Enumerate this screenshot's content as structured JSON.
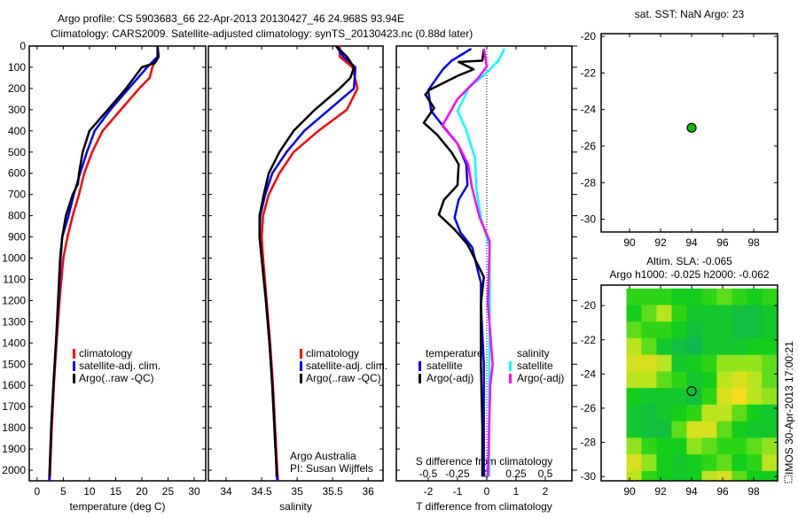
{
  "header": {
    "title_line1": "Argo profile: CS 5903683_66 22-Apr-2013 20130427_46 24.968S 93.94E",
    "title_line2": "Climatology: CARS2009. Satellite-adjusted climatology: synTS_20130423.nc (0.88d later)"
  },
  "colors": {
    "climatology": "#ff0000",
    "satellite": "#0000ff",
    "argo": "#000000",
    "sal_satellite": "#00ffff",
    "sal_argo": "#ff00ff"
  },
  "credits": {
    "line1": "Argo Australia",
    "line2": "PI: Susan Wijffels"
  },
  "imos_stamp": "IMOS 30-Apr-2013 17:00:21",
  "chart_data": [
    {
      "type": "line",
      "id": "temperature",
      "xlabel": "temperature (deg C)",
      "xticks": [
        "0",
        "5",
        "10",
        "15",
        "20",
        "25",
        "30"
      ],
      "xlim": [
        -1.5,
        32.2
      ],
      "ylim": [
        2050,
        0
      ],
      "yticks": [
        "0",
        "100",
        "200",
        "300",
        "400",
        "500",
        "600",
        "700",
        "800",
        "900",
        "1000",
        "1100",
        "1200",
        "1300",
        "1400",
        "1500",
        "1600",
        "1700",
        "1800",
        "1900",
        "2000"
      ],
      "legend": [
        "climatology",
        "satellite-adj. clim.",
        "Argo(..raw -QC)"
      ],
      "series": [
        {
          "name": "climatology",
          "depth": [
            0,
            50,
            100,
            150,
            200,
            300,
            400,
            500,
            600,
            700,
            800,
            900,
            1000,
            1200,
            1400,
            1600,
            1800,
            2000,
            2050
          ],
          "values": [
            23,
            23,
            22,
            21.5,
            19.5,
            16,
            12.5,
            10.5,
            9,
            8,
            6.8,
            5.8,
            5,
            4.3,
            3.7,
            3.2,
            2.8,
            2.5,
            2.4
          ]
        },
        {
          "name": "satellite-adj. clim.",
          "depth": [
            0,
            50,
            100,
            200,
            300,
            400,
            500,
            600,
            700,
            800,
            900,
            1000,
            1200,
            1400,
            1600,
            1800,
            2000,
            2050
          ],
          "values": [
            23,
            23,
            21,
            17.5,
            14,
            11,
            9.5,
            8.2,
            7,
            6,
            4.8,
            4.5,
            4.1,
            3.6,
            3.1,
            2.7,
            2.4,
            2.3
          ]
        },
        {
          "name": "Argo(..raw -QC)",
          "depth": [
            0,
            50,
            80,
            100,
            200,
            300,
            400,
            500,
            600,
            650,
            700,
            800,
            900,
            1000,
            1200,
            1400,
            1600,
            1800,
            2000,
            2030
          ],
          "values": [
            23,
            23.2,
            22.5,
            20,
            17,
            13.5,
            10,
            8.7,
            8,
            7.8,
            6.8,
            5.5,
            4.8,
            4.4,
            4,
            3.6,
            3.1,
            2.7,
            2.4,
            2.4
          ]
        }
      ]
    },
    {
      "type": "line",
      "id": "salinity",
      "xlabel": "salinity",
      "xticks": [
        "34",
        "34.5",
        "35",
        "35.5",
        "36"
      ],
      "xlim": [
        33.75,
        36.21
      ],
      "ylim": [
        2050,
        0
      ],
      "legend": [
        "climatology",
        "satellite-adj. clim.",
        "Argo(..raw -QC)"
      ],
      "series": [
        {
          "name": "climatology",
          "depth": [
            0,
            50,
            100,
            200,
            300,
            400,
            500,
            600,
            700,
            800,
            900,
            1000,
            1200,
            1400,
            1600,
            1800,
            2000,
            2050
          ],
          "values": [
            35.6,
            35.6,
            35.78,
            35.85,
            35.7,
            35.3,
            34.95,
            34.75,
            34.6,
            34.52,
            34.5,
            34.52,
            34.57,
            34.62,
            34.66,
            34.69,
            34.72,
            34.73
          ]
        },
        {
          "name": "satellite-adj. clim.",
          "depth": [
            0,
            50,
            100,
            200,
            300,
            400,
            500,
            600,
            700,
            800,
            900,
            1000,
            1200,
            1400,
            1600,
            1800,
            2000,
            2050
          ],
          "values": [
            35.55,
            35.65,
            35.82,
            35.8,
            35.45,
            35.1,
            34.85,
            34.65,
            34.55,
            34.48,
            34.47,
            34.5,
            34.56,
            34.61,
            34.65,
            34.68,
            34.71,
            34.72
          ]
        },
        {
          "name": "Argo(..raw -QC)",
          "depth": [
            0,
            50,
            100,
            150,
            200,
            300,
            400,
            500,
            600,
            700,
            800,
            900,
            1000,
            1200,
            1400,
            1600,
            1800,
            2000,
            2030
          ],
          "values": [
            35.55,
            35.7,
            35.8,
            35.75,
            35.6,
            35.25,
            34.95,
            34.75,
            34.6,
            34.53,
            34.47,
            34.47,
            34.5,
            34.56,
            34.61,
            34.65,
            34.68,
            34.71,
            34.71
          ]
        }
      ]
    },
    {
      "type": "line",
      "id": "difference",
      "xlabel": "T difference from climatology",
      "xlabel_top": "S difference from climatology",
      "xticks": [
        "-2",
        "-1",
        "0",
        "1",
        "2"
      ],
      "xticks_s": [
        "-0.5",
        "-0.25",
        "0",
        "0.25",
        "0.5"
      ],
      "xlim": [
        -3.09,
        2.91
      ],
      "s_scale": 4,
      "ylim": [
        2050,
        0
      ],
      "legend_title_t": "temperature",
      "legend_title_s": "salinity",
      "legend": [
        "satellite",
        "Argo(-adj)",
        "satellite",
        "Argo(-adj)"
      ],
      "series": [
        {
          "name": "T satellite",
          "quantity": "T",
          "depth": [
            13,
            69,
            110,
            208,
            306,
            376,
            460,
            558,
            656,
            725,
            809,
            879,
            949,
            1033,
            1117,
            1215,
            1500,
            2030
          ],
          "values": [
            -0.53,
            -1.2,
            -1.5,
            -2.0,
            -1.9,
            -1.5,
            -1.0,
            -0.7,
            -0.66,
            -0.96,
            -1.1,
            -0.9,
            -0.5,
            -0.35,
            -0.2,
            -0.2,
            -0.1,
            -0.1
          ]
        },
        {
          "name": "T Argo(-adj)",
          "quantity": "T",
          "depth": [
            13,
            69,
            75,
            110,
            138,
            208,
            229,
            292,
            362,
            418,
            502,
            558,
            656,
            725,
            795,
            865,
            935,
            1033,
            1089,
            1215,
            1500,
            1800,
            2030
          ],
          "values": [
            -0.1,
            -0.15,
            -0.96,
            -0.45,
            -0.96,
            -1.97,
            -2.1,
            -1.8,
            -2.15,
            -1.7,
            -1.2,
            -0.96,
            -1.0,
            -1.46,
            -1.64,
            -1.1,
            -0.66,
            -0.3,
            -0.1,
            -0.2,
            -0.2,
            -0.15,
            -0.15
          ]
        },
        {
          "name": "S satellite",
          "quantity": "S",
          "depth": [
            13,
            69,
            138,
            194,
            306,
            390,
            530,
            670,
            809,
            949,
            1215,
            1600,
            2030
          ],
          "values": [
            0.15,
            0.1,
            -0.025,
            -0.15,
            -0.25,
            -0.18,
            -0.1,
            -0.09,
            -0.05,
            0.025,
            0.025,
            0.02,
            0.02
          ]
        },
        {
          "name": "S Argo(-adj)",
          "quantity": "S",
          "depth": [
            13,
            97,
            152,
            250,
            376,
            460,
            558,
            670,
            809,
            921,
            1215,
            1500,
            1600,
            2030
          ],
          "values": [
            -0.025,
            0,
            -0.075,
            -0.25,
            -0.38,
            -0.25,
            -0.16,
            -0.125,
            -0.06,
            0.025,
            0.01,
            0.05,
            0.03,
            0.01
          ]
        }
      ]
    },
    {
      "type": "scatter",
      "id": "sst-map",
      "title": "sat. SST: NaN Argo: 23",
      "xlim": [
        88.17,
        99.54
      ],
      "ylim": [
        -30.7,
        -19.85
      ],
      "xticks": [
        "90",
        "92",
        "94",
        "96",
        "98"
      ],
      "yticks": [
        "-20",
        "-22",
        "-24",
        "-26",
        "-28",
        "-30"
      ],
      "points": [
        {
          "lon": 94,
          "lat": -25
        }
      ]
    },
    {
      "type": "heatmap",
      "id": "sla-map",
      "title": "Altim. SLA: -0.065",
      "subtitle": "Argo h1000: -0.025 h2000: -0.062",
      "xlim": [
        88.17,
        99.54
      ],
      "ylim": [
        -30.25,
        -18.8
      ],
      "xticks": [
        "90",
        "92",
        "94",
        "96",
        "98"
      ],
      "yticks": [
        "-20",
        "-22",
        "-24",
        "-26",
        "-28",
        "-30"
      ],
      "lon_start": 89.8,
      "lat_start": -19,
      "cell_deg": 0.97,
      "grid": [
        [
          0.5,
          0.5,
          0.5,
          0.4,
          0.4,
          0.5,
          0.6,
          0.5,
          0.4,
          0.5
        ],
        [
          0.4,
          0.6,
          0.8,
          0.5,
          0.3,
          0.3,
          0.3,
          0.2,
          0.2,
          0.3
        ],
        [
          0.6,
          0.5,
          0.5,
          0.4,
          0.2,
          0.3,
          0.3,
          0.2,
          0.2,
          0.3
        ],
        [
          0.8,
          0.6,
          0.3,
          0.2,
          0.1,
          0.3,
          0.3,
          0.3,
          0.4,
          0.4
        ],
        [
          0.9,
          0.9,
          0.8,
          0.3,
          0.4,
          0.5,
          0.7,
          0.7,
          0.7,
          0.6
        ],
        [
          0.8,
          0.8,
          0.6,
          0.5,
          0.3,
          0.4,
          0.8,
          0.9,
          0.8,
          0.6
        ],
        [
          0.4,
          0.3,
          0.3,
          0.3,
          0.2,
          0.5,
          0.9,
          1.0,
          0.8,
          0.7
        ],
        [
          0.3,
          0.2,
          0.3,
          0.4,
          0.5,
          0.8,
          0.8,
          0.6,
          0.4,
          0.3
        ],
        [
          0.3,
          0.2,
          0.2,
          0.6,
          0.9,
          0.9,
          0.6,
          0.4,
          0.3,
          0.3
        ],
        [
          0.7,
          0.5,
          0.4,
          0.4,
          0.7,
          0.6,
          0.5,
          0.5,
          0.6,
          0.7
        ],
        [
          0.9,
          0.7,
          0.4,
          0.3,
          0.4,
          0.5,
          0.6,
          0.4,
          0.5,
          0.8
        ],
        [
          0.8,
          0.5,
          0.4,
          0.3,
          0.4,
          0.8,
          0.9,
          0.6,
          0.4,
          0.4
        ]
      ],
      "points": [
        {
          "lon": 94,
          "lat": -25
        }
      ]
    }
  ]
}
